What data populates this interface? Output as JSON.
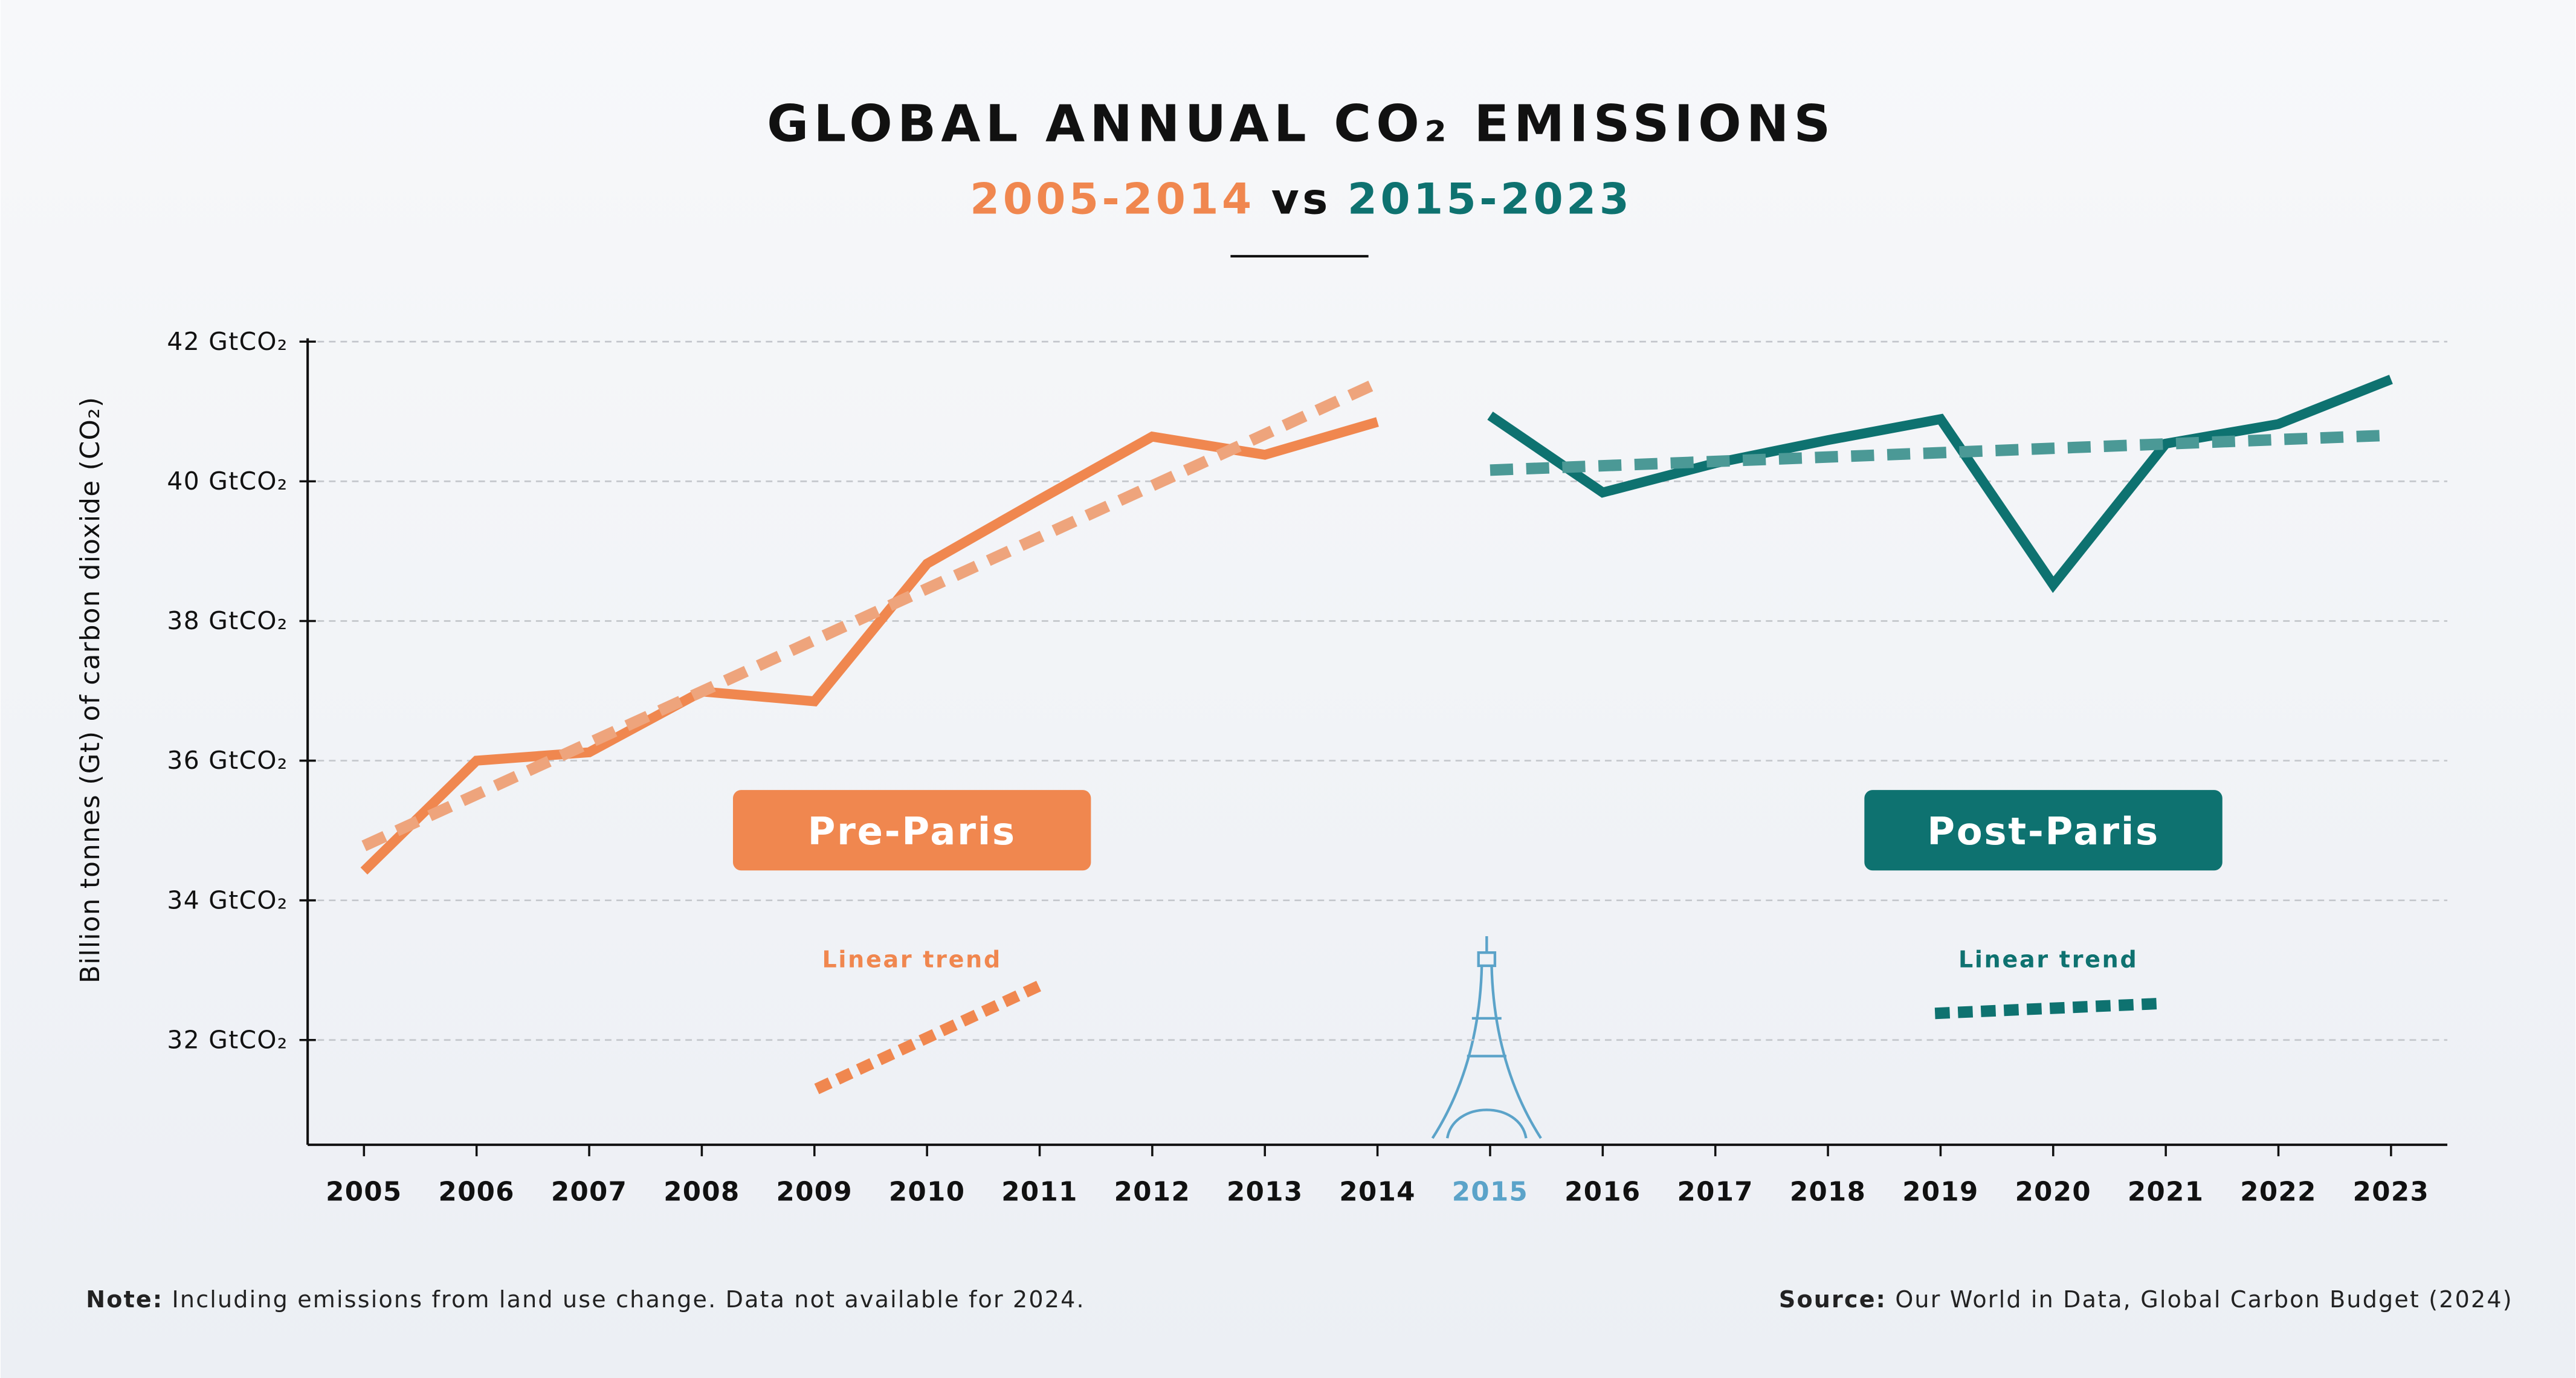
{
  "chart_data": {
    "type": "line",
    "title": "GLOBAL ANNUAL CO₂ EMISSIONS",
    "subtitle": [
      {
        "text": "2005-2014",
        "color": "#f0874f"
      },
      {
        "text": "vs",
        "color": "#111111"
      },
      {
        "text": "2015-2023",
        "color": "#0e7270"
      }
    ],
    "y_label": "Billion tonnes (Gt) of carbon dioxide (CO₂)",
    "xlim": [
      2004.5,
      2023.5
    ],
    "xticks": [
      2005,
      2006,
      2007,
      2008,
      2009,
      2010,
      2011,
      2012,
      2013,
      2014,
      2015,
      2016,
      2017,
      2018,
      2019,
      2020,
      2021,
      2022,
      2023
    ],
    "highlight_xtick": 2015,
    "highlight_color": "#5ba3c9",
    "ylim": [
      30.5,
      42
    ],
    "yticks": [
      {
        "value": 32,
        "label": "32 GtCO₂"
      },
      {
        "value": 34,
        "label": "34 GtCO₂"
      },
      {
        "value": 36,
        "label": "36 GtCO₂"
      },
      {
        "value": 38,
        "label": "38 GtCO₂"
      },
      {
        "value": 40,
        "label": "40 GtCO₂"
      },
      {
        "value": 42,
        "label": "42 GtCO₂"
      }
    ],
    "grid": true,
    "series": [
      {
        "name": "Pre-Paris",
        "color": "#f0874f",
        "style": "solid",
        "x": [
          2005,
          2006,
          2007,
          2008,
          2009,
          2010,
          2011,
          2012,
          2013,
          2014
        ],
        "values": [
          34.42,
          36.0,
          36.12,
          36.99,
          36.85,
          38.82,
          39.74,
          40.64,
          40.38,
          40.85
        ]
      },
      {
        "name": "Linear trend",
        "color": "#eea47c",
        "style": "dashed",
        "x": [
          2005,
          2014
        ],
        "values": [
          34.78,
          41.41
        ]
      },
      {
        "name": "Post-Paris",
        "color": "#0e7270",
        "style": "solid",
        "x": [
          2015,
          2016,
          2017,
          2018,
          2019,
          2020,
          2021,
          2022,
          2023
        ],
        "values": [
          40.94,
          39.84,
          40.26,
          40.59,
          40.89,
          38.52,
          40.54,
          40.82,
          41.46
        ]
      },
      {
        "name": "Linear trend",
        "color": "#4b9996",
        "style": "dashed",
        "x": [
          2015,
          2023
        ],
        "values": [
          40.16,
          40.66
        ]
      }
    ],
    "note": {
      "label": "Note:",
      "text": "Including emissions from land use change. Data not available for 2024."
    },
    "source": {
      "label": "Source:",
      "text": "Our World in Data, Global Carbon Budget (2024)"
    }
  }
}
